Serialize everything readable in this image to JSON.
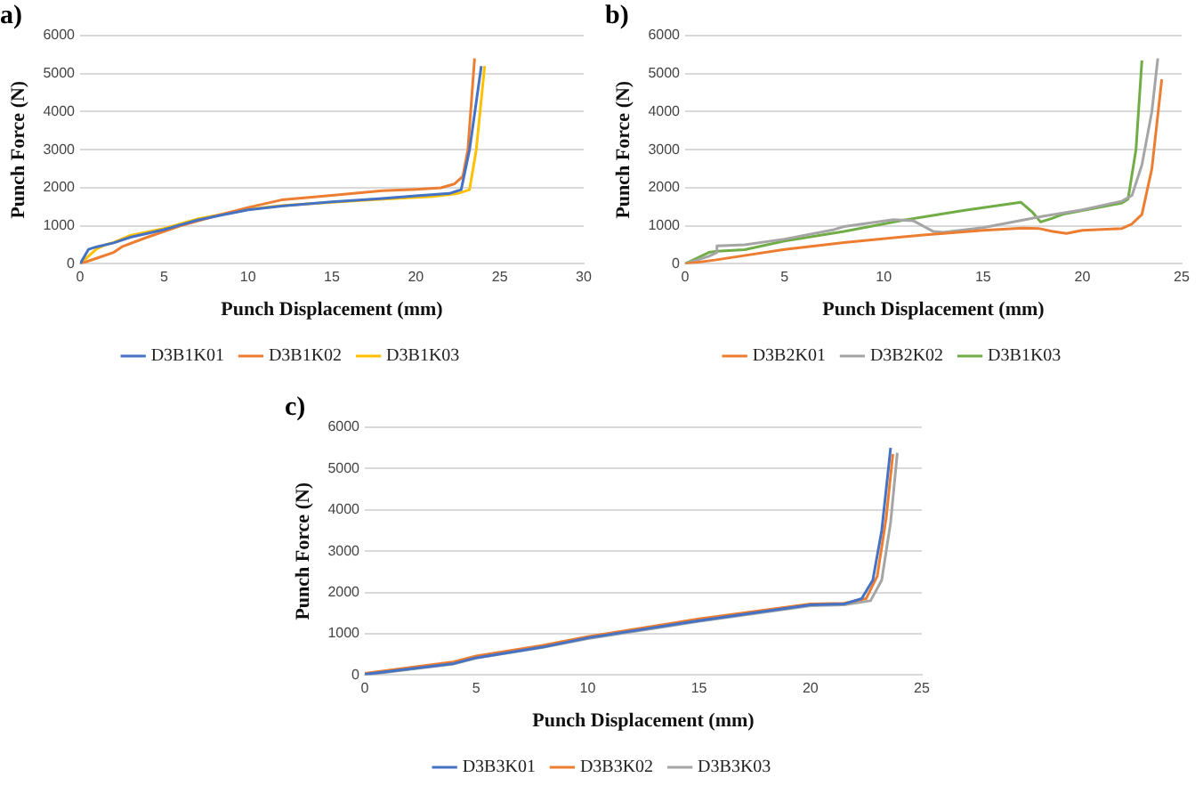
{
  "chart_data": [
    {
      "type": "line",
      "title": "a)",
      "xlabel": "Punch Displacement (mm)",
      "ylabel": "Punch Force (N)",
      "xlim": [
        0,
        30
      ],
      "xticks": [
        0,
        5,
        10,
        15,
        20,
        25,
        30
      ],
      "ylim": [
        0,
        6000
      ],
      "yticks": [
        0,
        1000,
        2000,
        3000,
        4000,
        5000,
        6000
      ],
      "grid": "y",
      "legend": "bottom",
      "marker": "none",
      "line_style": "solid",
      "series": [
        {
          "name": "D3B1K01",
          "color": "#4472c4",
          "x": [
            0,
            0.5,
            1,
            2,
            3,
            5,
            7,
            10,
            12,
            15,
            18,
            20,
            22,
            22.7,
            23.2,
            23.9
          ],
          "values": [
            0,
            380,
            450,
            550,
            700,
            900,
            1150,
            1420,
            1520,
            1630,
            1720,
            1790,
            1850,
            1950,
            3000,
            5200
          ]
        },
        {
          "name": "D3B1K02",
          "color": "#ed7d31",
          "x": [
            0,
            1,
            2,
            2.5,
            4,
            6,
            8,
            10,
            12,
            15,
            18,
            20,
            21.5,
            22.3,
            22.8,
            23.1,
            23.5
          ],
          "values": [
            0,
            150,
            300,
            450,
            700,
            1000,
            1250,
            1480,
            1680,
            1800,
            1920,
            1960,
            2000,
            2100,
            2300,
            3000,
            5400
          ]
        },
        {
          "name": "D3B1K03",
          "color": "#ffc000",
          "x": [
            0,
            1,
            1.5,
            2,
            3,
            5,
            7,
            10,
            12,
            15,
            18,
            21,
            22.5,
            23.2,
            23.6,
            24.1
          ],
          "values": [
            0,
            400,
            500,
            560,
            750,
            930,
            1180,
            1430,
            1530,
            1620,
            1700,
            1770,
            1850,
            1950,
            3000,
            5200
          ]
        }
      ]
    },
    {
      "type": "line",
      "title": "b)",
      "xlabel": "Punch Displacement (mm)",
      "ylabel": "Punch Force (N)",
      "xlim": [
        0,
        25
      ],
      "xticks": [
        0,
        5,
        10,
        15,
        20,
        25
      ],
      "ylim": [
        0,
        6000
      ],
      "yticks": [
        0,
        1000,
        2000,
        3000,
        4000,
        5000,
        6000
      ],
      "grid": "y",
      "legend": "bottom",
      "marker": "none",
      "line_style": "solid",
      "series": [
        {
          "name": "D3B2K01",
          "color": "#ed7d31",
          "x": [
            0,
            1.5,
            5,
            8,
            12,
            15,
            17,
            17.8,
            18.5,
            19.2,
            20,
            22,
            22.5,
            23,
            23.5,
            24
          ],
          "values": [
            0,
            100,
            380,
            560,
            760,
            880,
            940,
            930,
            850,
            800,
            880,
            930,
            1050,
            1300,
            2500,
            4850
          ]
        },
        {
          "name": "D3B2K02",
          "color": "#a5a5a5",
          "x": [
            0,
            1.2,
            1.6,
            1.6,
            3,
            5,
            7.5,
            8,
            10.5,
            11.5,
            12.5,
            13,
            15,
            18,
            20,
            22,
            22.5,
            23,
            23.5,
            23.8
          ],
          "values": [
            0,
            200,
            300,
            470,
            500,
            650,
            900,
            980,
            1160,
            1130,
            850,
            830,
            950,
            1250,
            1420,
            1650,
            1800,
            2600,
            4000,
            5400
          ]
        },
        {
          "name": "D3B1K03",
          "color": "#70ad47",
          "x": [
            0,
            1.2,
            1.6,
            3,
            5,
            8,
            10,
            11,
            14,
            16.9,
            17.5,
            17.9,
            18.5,
            19,
            22,
            22.3,
            22.7,
            23
          ],
          "values": [
            0,
            300,
            330,
            370,
            600,
            850,
            1050,
            1150,
            1400,
            1620,
            1350,
            1100,
            1200,
            1300,
            1600,
            1700,
            3000,
            5350
          ]
        }
      ]
    },
    {
      "type": "line",
      "title": "c)",
      "xlabel": "Punch Displacement (mm)",
      "ylabel": "Punch Force (N)",
      "xlim": [
        0,
        25
      ],
      "xticks": [
        0,
        5,
        10,
        15,
        20,
        25
      ],
      "ylim": [
        0,
        6000
      ],
      "yticks": [
        0,
        1000,
        2000,
        3000,
        4000,
        5000,
        6000
      ],
      "grid": "y",
      "legend": "bottom",
      "marker": "none",
      "line_style": "solid",
      "series": [
        {
          "name": "D3B3K01",
          "color": "#4472c4",
          "x": [
            0,
            2,
            4,
            5,
            8,
            10,
            15,
            20,
            21.5,
            22.3,
            22.8,
            23.2,
            23.6
          ],
          "values": [
            20,
            150,
            280,
            420,
            680,
            900,
            1320,
            1700,
            1720,
            1850,
            2300,
            3500,
            5500
          ]
        },
        {
          "name": "D3B3K02",
          "color": "#ed7d31",
          "x": [
            0,
            2,
            4,
            5,
            8,
            10,
            15,
            20,
            21.5,
            22.5,
            23,
            23.4,
            23.7
          ],
          "values": [
            40,
            180,
            320,
            460,
            720,
            930,
            1360,
            1720,
            1740,
            1850,
            2400,
            3800,
            5350
          ]
        },
        {
          "name": "D3B3K03",
          "color": "#a5a5a5",
          "x": [
            0,
            2,
            4,
            5,
            8,
            10,
            15,
            20,
            21.5,
            22.7,
            23.2,
            23.6,
            23.9
          ],
          "values": [
            0,
            140,
            270,
            410,
            670,
            880,
            1300,
            1680,
            1700,
            1800,
            2300,
            3700,
            5380
          ]
        }
      ]
    }
  ]
}
